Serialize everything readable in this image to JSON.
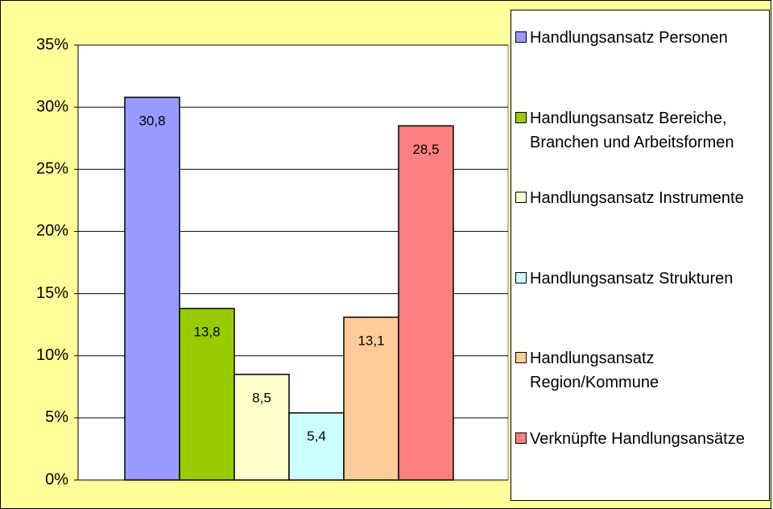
{
  "chart_data": {
    "type": "bar",
    "series": [
      {
        "name": "Handlungsansatz Personen",
        "color": "#9999ff",
        "values": [
          30.8
        ],
        "value_labels": [
          "30,8"
        ]
      },
      {
        "name": "Handlungsansatz Bereiche, Branchen und Arbeitsformen",
        "color": "#99cc00",
        "values": [
          13.8
        ],
        "value_labels": [
          "13,8"
        ]
      },
      {
        "name": "Handlungsansatz Instrumente",
        "color": "#ffffcc",
        "values": [
          8.5
        ],
        "value_labels": [
          "8,5"
        ]
      },
      {
        "name": "Handlungsansatz Strukturen",
        "color": "#ccffff",
        "values": [
          5.4
        ],
        "value_labels": [
          "5,4"
        ]
      },
      {
        "name": "Handlungsansatz Region/Kommune",
        "color": "#ffcc99",
        "values": [
          13.1
        ],
        "value_labels": [
          "13,1"
        ]
      },
      {
        "name": "Verknüpfte Handlungsansätze",
        "color": "#ff8080",
        "values": [
          28.5
        ],
        "value_labels": [
          "28,5"
        ]
      }
    ],
    "ylim": [
      0,
      35
    ],
    "yticks": [
      {
        "value": 0,
        "label": "0%"
      },
      {
        "value": 5,
        "label": "5%"
      },
      {
        "value": 10,
        "label": "10%"
      },
      {
        "value": 15,
        "label": "15%"
      },
      {
        "value": 20,
        "label": "20%"
      },
      {
        "value": 25,
        "label": "25%"
      },
      {
        "value": 30,
        "label": "30%"
      },
      {
        "value": 35,
        "label": "35%"
      }
    ],
    "grid": true,
    "legend": "right"
  }
}
